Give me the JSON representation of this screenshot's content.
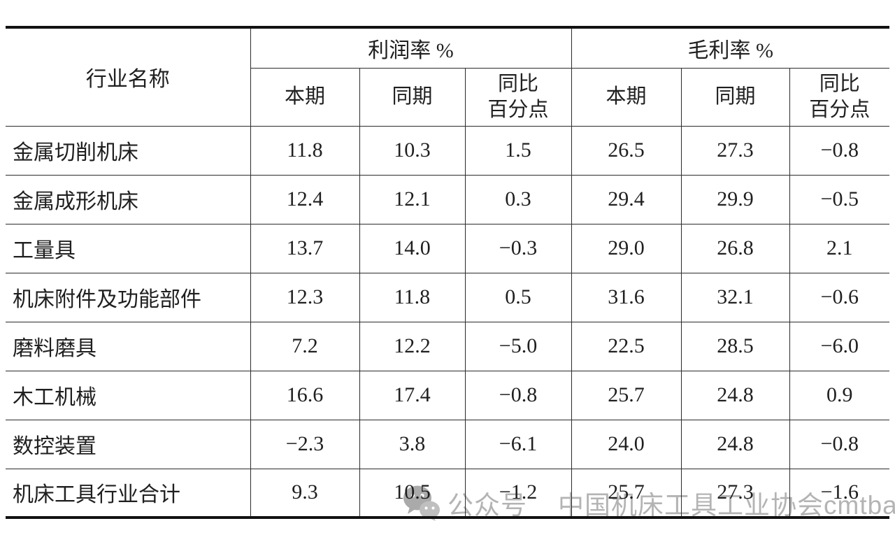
{
  "chart_data": {
    "type": "table",
    "corner_header": "行业名称",
    "column_groups": [
      {
        "label": "利润率 %",
        "columns": [
          "本期",
          "同期",
          "同比\n百分点"
        ]
      },
      {
        "label": "毛利率 %",
        "columns": [
          "本期",
          "同期",
          "同比\n百分点"
        ]
      }
    ],
    "rows": [
      {
        "label": "金属切削机床",
        "values": [
          "11.8",
          "10.3",
          "1.5",
          "26.5",
          "27.3",
          "−0.8"
        ]
      },
      {
        "label": "金属成形机床",
        "values": [
          "12.4",
          "12.1",
          "0.3",
          "29.4",
          "29.9",
          "−0.5"
        ]
      },
      {
        "label": "工量具",
        "values": [
          "13.7",
          "14.0",
          "−0.3",
          "29.0",
          "26.8",
          "2.1"
        ]
      },
      {
        "label": "机床附件及功能部件",
        "values": [
          "12.3",
          "11.8",
          "0.5",
          "31.6",
          "32.1",
          "−0.6"
        ]
      },
      {
        "label": "磨料磨具",
        "values": [
          "7.2",
          "12.2",
          "−5.0",
          "22.5",
          "28.5",
          "−6.0"
        ]
      },
      {
        "label": "木工机械",
        "values": [
          "16.6",
          "17.4",
          "−0.8",
          "25.7",
          "24.8",
          "0.9"
        ]
      },
      {
        "label": "数控装置",
        "values": [
          "−2.3",
          "3.8",
          "−6.1",
          "24.0",
          "24.8",
          "−0.8"
        ]
      },
      {
        "label": "机床工具行业合计",
        "values": [
          "9.3",
          "10.5",
          "−1.2",
          "25.7",
          "27.3",
          "−1.6"
        ]
      }
    ]
  },
  "watermark": {
    "icon": "wechat-bubbles-icon",
    "prefix": "公众号",
    "name": "中国机床工具工业协会cmtba"
  },
  "colors": {
    "header_bg": "#d9ecea",
    "grid_line": "#2b2b2b",
    "outer_border": "#111111",
    "text": "#1f1f1f",
    "watermark_gray": "#b4b4b4"
  }
}
